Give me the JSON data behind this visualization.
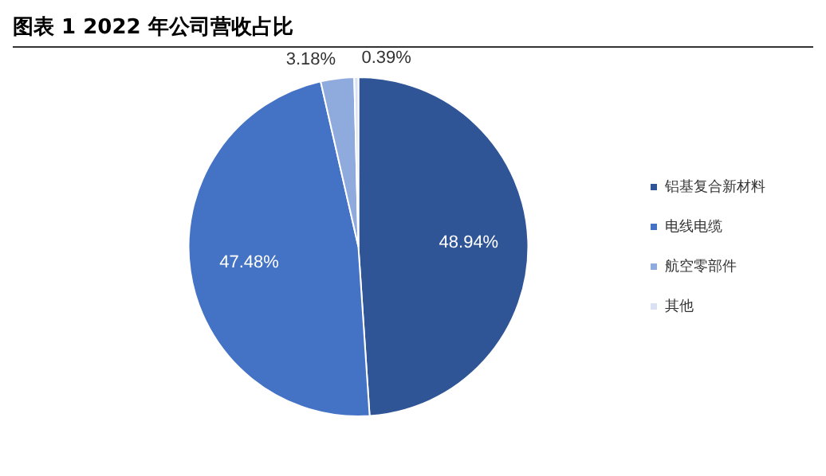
{
  "chart_data": {
    "type": "pie",
    "title": "图表 1 2022 年公司营收占比",
    "categories": [
      "铝基复合新材料",
      "电线电缆",
      "航空零部件",
      "其他"
    ],
    "values": [
      48.94,
      47.48,
      3.18,
      0.39
    ],
    "colors": [
      "#2f5597",
      "#4472c4",
      "#8faadc",
      "#d9e1f2"
    ],
    "value_labels": [
      "48.94%",
      "47.48%",
      "3.18%",
      "0.39%"
    ],
    "legend": "right"
  }
}
